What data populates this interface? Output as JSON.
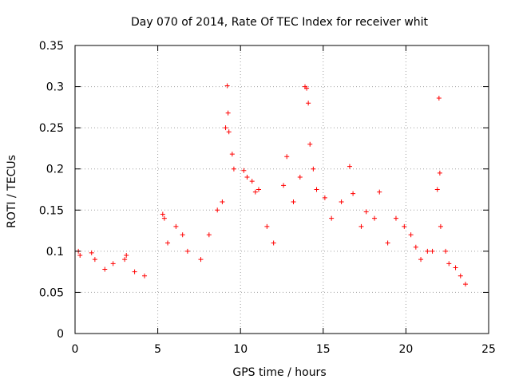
{
  "chart_data": {
    "type": "scatter",
    "title": "Day 070 of 2014, Rate Of TEC Index for receiver whit",
    "xlabel": "GPS time / hours",
    "ylabel": "ROTI / TECUs",
    "xlim": [
      0,
      25
    ],
    "ylim": [
      0,
      0.35
    ],
    "x_ticks": [
      0,
      5,
      10,
      15,
      20,
      25
    ],
    "x_tick_labels": [
      "0",
      "5",
      "10",
      "15",
      "20",
      "25"
    ],
    "y_ticks": [
      0,
      0.05,
      0.1,
      0.15,
      0.2,
      0.25,
      0.3,
      0.35
    ],
    "y_tick_labels": [
      "0",
      "0.05",
      "0.1",
      "0.15",
      "0.2",
      "0.25",
      "0.3",
      "0.35"
    ],
    "grid": true,
    "marker": "+",
    "color": "#ff0000",
    "series": [
      {
        "points": [
          [
            0.2,
            0.1
          ],
          [
            0.3,
            0.095
          ],
          [
            1.0,
            0.098
          ],
          [
            1.2,
            0.09
          ],
          [
            1.8,
            0.078
          ],
          [
            2.3,
            0.085
          ],
          [
            3.0,
            0.09
          ],
          [
            3.1,
            0.095
          ],
          [
            3.6,
            0.075
          ],
          [
            4.2,
            0.07
          ],
          [
            5.3,
            0.145
          ],
          [
            5.4,
            0.14
          ],
          [
            5.6,
            0.11
          ],
          [
            6.1,
            0.13
          ],
          [
            6.5,
            0.12
          ],
          [
            6.8,
            0.1
          ],
          [
            7.6,
            0.09
          ],
          [
            8.1,
            0.12
          ],
          [
            8.6,
            0.15
          ],
          [
            8.9,
            0.16
          ],
          [
            9.1,
            0.25
          ],
          [
            9.2,
            0.301
          ],
          [
            9.25,
            0.268
          ],
          [
            9.3,
            0.245
          ],
          [
            9.5,
            0.218
          ],
          [
            9.6,
            0.2
          ],
          [
            10.2,
            0.198
          ],
          [
            10.4,
            0.19
          ],
          [
            10.7,
            0.185
          ],
          [
            10.9,
            0.172
          ],
          [
            11.1,
            0.175
          ],
          [
            11.6,
            0.13
          ],
          [
            12.0,
            0.11
          ],
          [
            12.6,
            0.18
          ],
          [
            12.8,
            0.215
          ],
          [
            13.2,
            0.16
          ],
          [
            13.6,
            0.19
          ],
          [
            13.9,
            0.3
          ],
          [
            14.0,
            0.298
          ],
          [
            14.1,
            0.28
          ],
          [
            14.2,
            0.23
          ],
          [
            14.4,
            0.2
          ],
          [
            14.6,
            0.175
          ],
          [
            15.1,
            0.165
          ],
          [
            15.5,
            0.14
          ],
          [
            16.1,
            0.16
          ],
          [
            16.6,
            0.203
          ],
          [
            16.8,
            0.17
          ],
          [
            17.3,
            0.13
          ],
          [
            17.6,
            0.148
          ],
          [
            18.1,
            0.14
          ],
          [
            18.4,
            0.172
          ],
          [
            18.9,
            0.11
          ],
          [
            19.4,
            0.14
          ],
          [
            19.9,
            0.13
          ],
          [
            20.3,
            0.12
          ],
          [
            20.6,
            0.105
          ],
          [
            20.9,
            0.09
          ],
          [
            21.3,
            0.1
          ],
          [
            21.6,
            0.1
          ],
          [
            21.9,
            0.175
          ],
          [
            22.0,
            0.286
          ],
          [
            22.05,
            0.195
          ],
          [
            22.1,
            0.13
          ],
          [
            22.4,
            0.1
          ],
          [
            22.6,
            0.085
          ],
          [
            23.0,
            0.08
          ],
          [
            23.3,
            0.07
          ],
          [
            23.6,
            0.06
          ]
        ]
      }
    ]
  }
}
